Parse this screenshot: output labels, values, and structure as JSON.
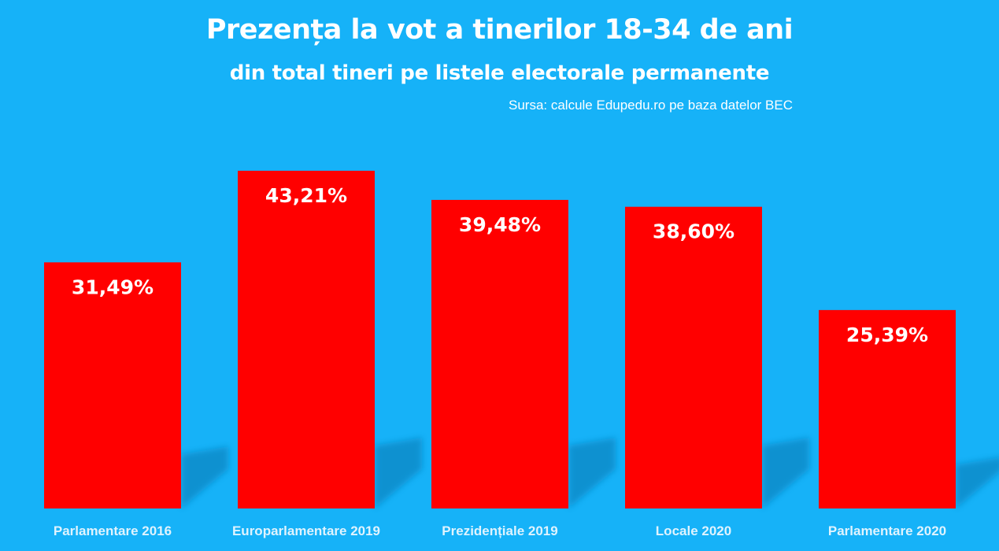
{
  "colors": {
    "background": "#16b2f8",
    "bar": "#ff0000",
    "shadow": "#0e8cca",
    "text": "#ffffff",
    "category_text": "#dff3fe"
  },
  "chart_data": {
    "type": "bar",
    "title": "Prezența la vot a tinerilor 18-34 de ani",
    "subtitle": "din total tineri pe listele electorale permanente",
    "source": "Sursa: calcule Edupedu.ro pe baza datelor BEC",
    "categories": [
      "Parlamentare 2016",
      "Europarlamentare 2019",
      "Prezidențiale 2019",
      "Locale 2020",
      "Parlamentare 2020"
    ],
    "values": [
      31.49,
      43.21,
      39.48,
      38.6,
      25.39
    ],
    "data_labels": [
      "31,49%",
      "43,21%",
      "39,48%",
      "38,60%",
      "25,39%"
    ],
    "unit": "%",
    "xlabel": "",
    "ylabel": "",
    "ylim": [
      0,
      45
    ],
    "grid": false,
    "legend": "none"
  }
}
